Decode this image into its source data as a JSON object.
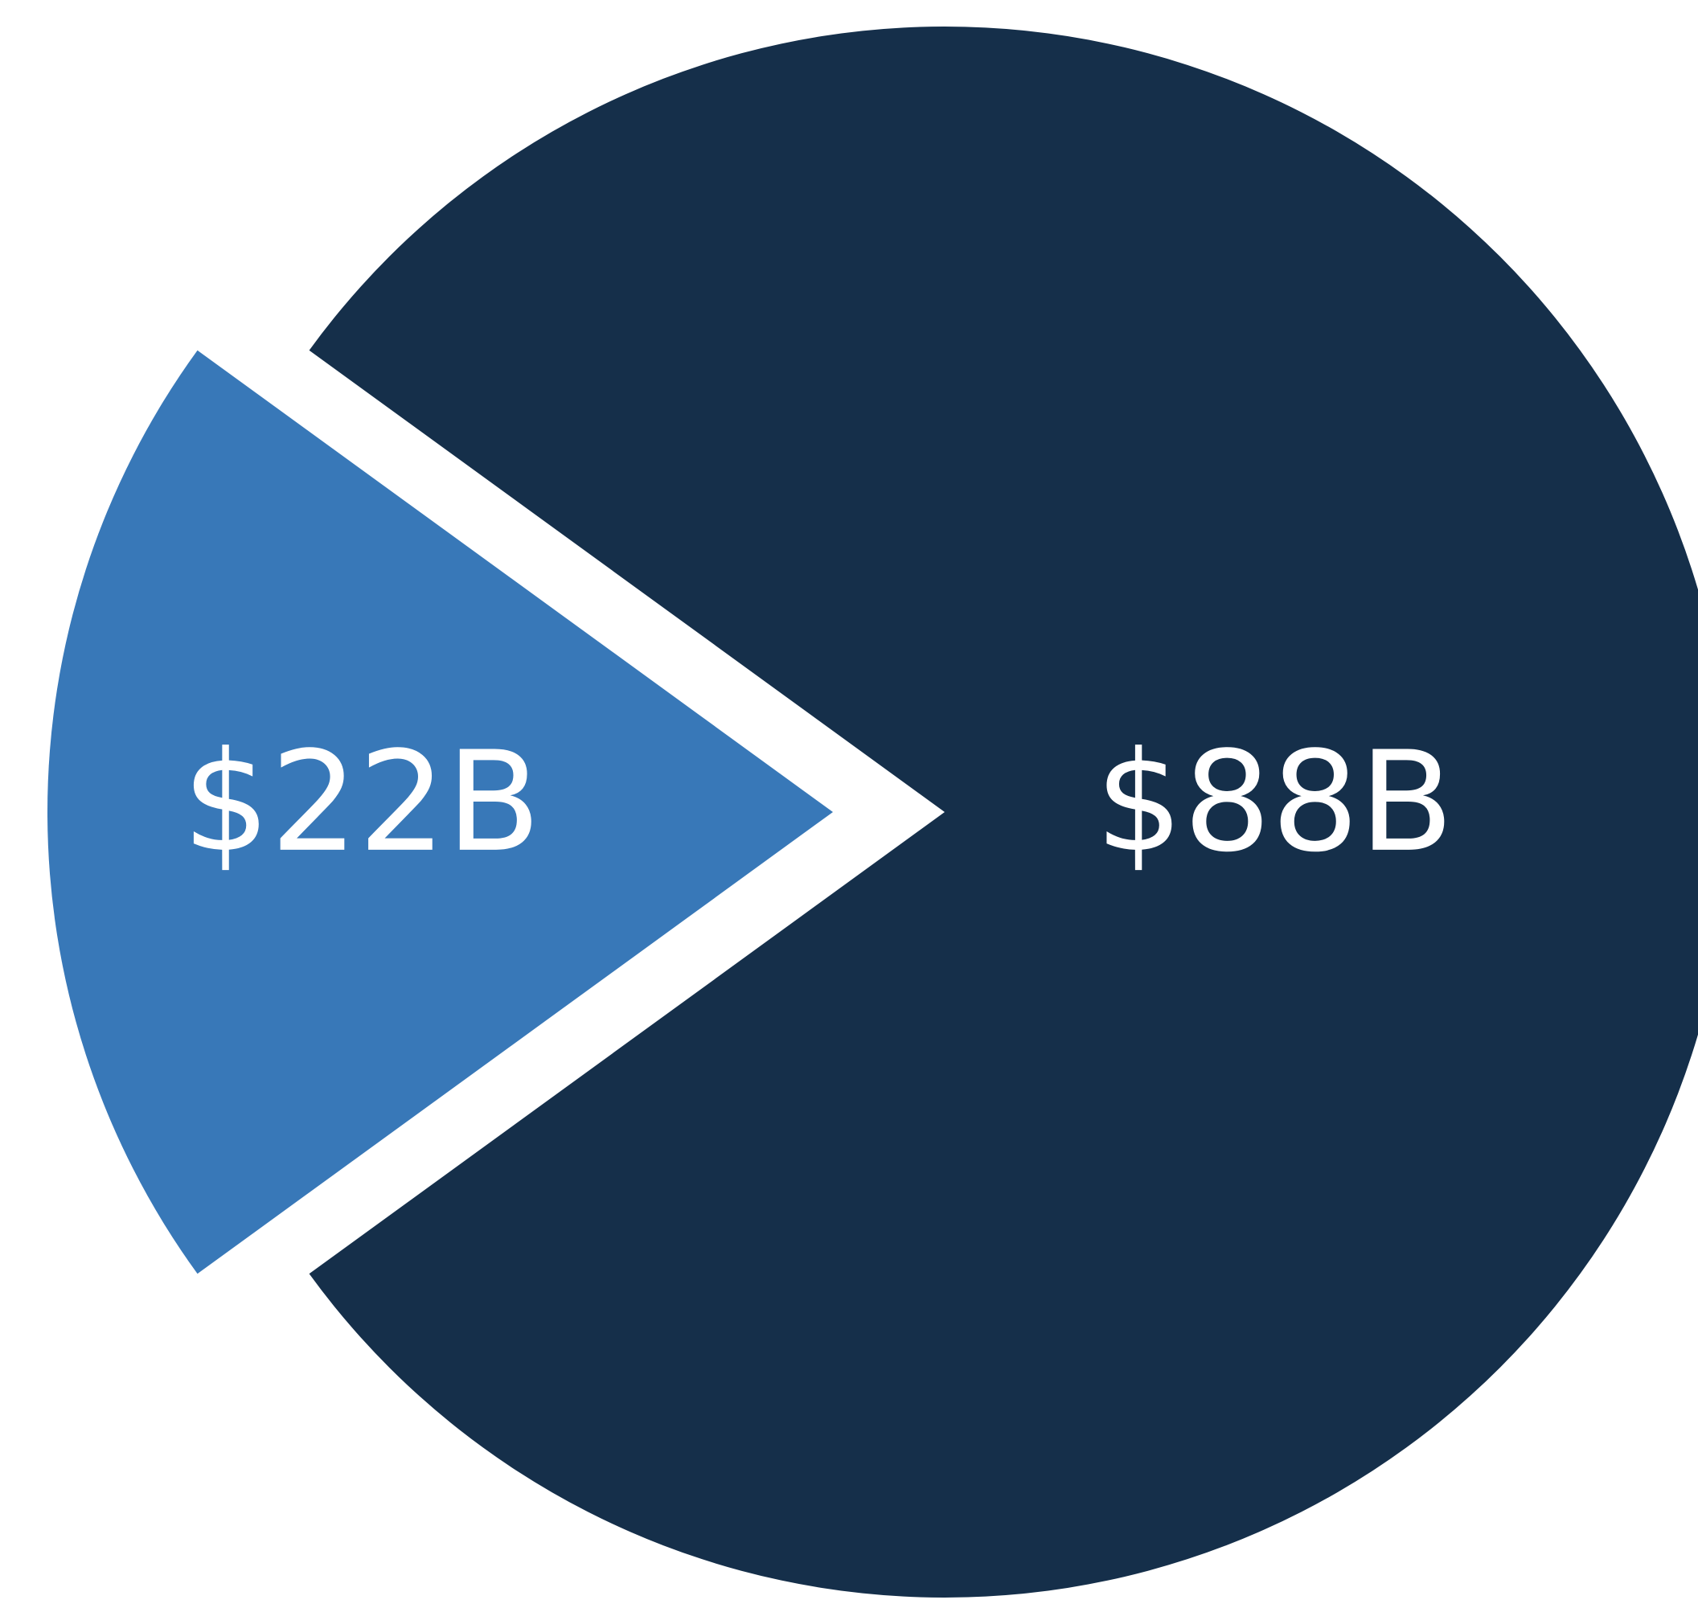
{
  "chart_data": {
    "type": "pie",
    "categories": [
      null,
      null
    ],
    "values": [
      22,
      88
    ],
    "value_labels": [
      "$22B",
      "$88B"
    ],
    "colors": [
      "#3878b8",
      "#152f4a"
    ]
  }
}
